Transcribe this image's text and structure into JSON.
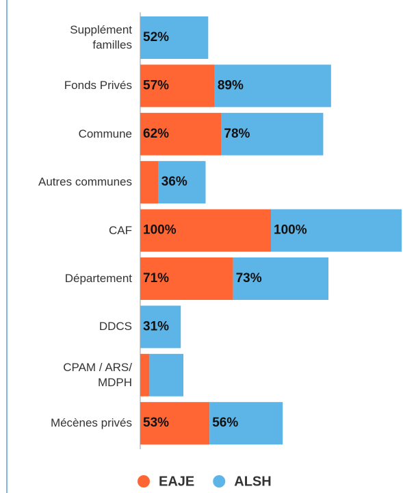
{
  "chart_data": {
    "type": "stacked-bar-horizontal",
    "categories": [
      "Supplément\nfamilles",
      "Fonds Privés",
      "Commune",
      "Autres communes",
      "CAF",
      "Département",
      "DDCS",
      "CPAM / ARS/\nMDPH",
      "Mécènes privés"
    ],
    "series": [
      {
        "name": "EAJE",
        "color": "#ff6633",
        "values": [
          0,
          57,
          62,
          14,
          100,
          71,
          0,
          7,
          53
        ],
        "value_labels": [
          null,
          "57%",
          "62%",
          null,
          "100%",
          "71%",
          null,
          null,
          "53%"
        ]
      },
      {
        "name": "ALSH",
        "color": "#5db4e6",
        "values": [
          52,
          89,
          78,
          36,
          100,
          73,
          31,
          26,
          56
        ],
        "value_labels": [
          "52%",
          "89%",
          "78%",
          "36%",
          "100%",
          "73%",
          "31%",
          null,
          "56%"
        ]
      }
    ],
    "xlim": [
      0,
      200
    ],
    "legend": "bottom"
  }
}
